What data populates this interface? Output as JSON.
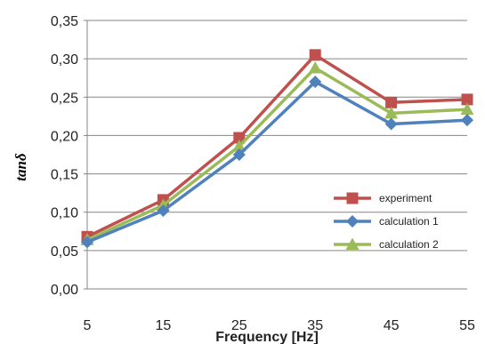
{
  "chart_data": {
    "type": "line",
    "title": "",
    "xlabel": "Frequency [Hz]",
    "ylabel": "tanδ",
    "xlim": [
      5,
      55
    ],
    "ylim": [
      0,
      0.35
    ],
    "x_ticks": [
      "5",
      "15",
      "25",
      "35",
      "45",
      "55"
    ],
    "y_ticks": [
      "0,00",
      "0,05",
      "0,10",
      "0,15",
      "0,20",
      "0,25",
      "0,30",
      "0,35"
    ],
    "grid": "horizontal",
    "legend_position": "bottom-right",
    "series": [
      {
        "name": "experiment",
        "color": "#c0504d",
        "marker": "square",
        "x": [
          5,
          15,
          25,
          35,
          45,
          55
        ],
        "y": [
          0.068,
          0.116,
          0.197,
          0.305,
          0.243,
          0.247
        ]
      },
      {
        "name": "calculation 1",
        "color": "#4f81bd",
        "marker": "diamond",
        "x": [
          5,
          15,
          25,
          35,
          45,
          55
        ],
        "y": [
          0.061,
          0.102,
          0.175,
          0.27,
          0.215,
          0.22
        ]
      },
      {
        "name": "calculation 2",
        "color": "#9bbb59",
        "marker": "triangle",
        "x": [
          5,
          15,
          25,
          35,
          45,
          55
        ],
        "y": [
          0.064,
          0.109,
          0.186,
          0.288,
          0.229,
          0.234
        ]
      }
    ]
  }
}
